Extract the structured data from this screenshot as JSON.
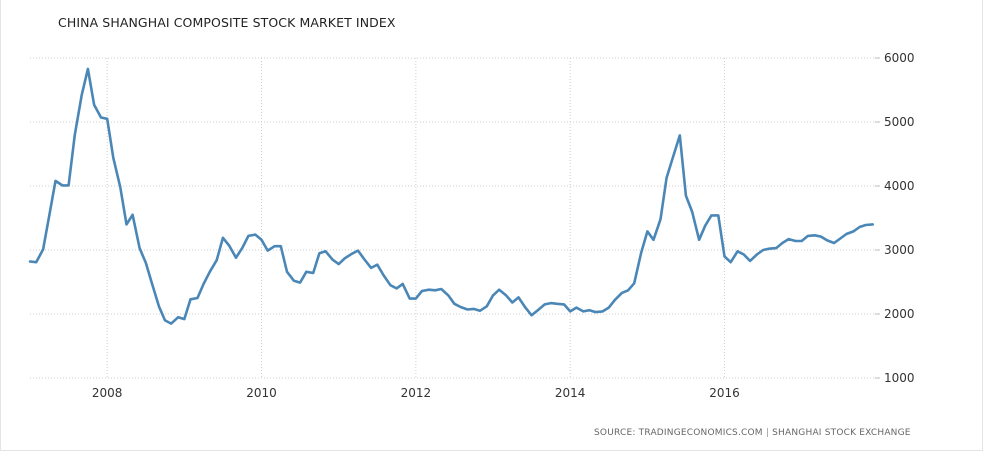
{
  "chart_data": {
    "type": "line",
    "title": "CHINA SHANGHAI COMPOSITE STOCK MARKET INDEX",
    "xlabel": "",
    "ylabel": "",
    "ylim": [
      1000,
      6000
    ],
    "xlim": [
      2007.0,
      2017.95
    ],
    "y_ticks": [
      "6000",
      "5000",
      "4000",
      "3000",
      "2000",
      "1000"
    ],
    "x_ticks": [
      "2008",
      "2010",
      "2012",
      "2014",
      "2016"
    ],
    "grid": true,
    "legend": "none",
    "line_color": "#4a87b7",
    "series": [
      {
        "x": [
          2007.0,
          2007.08,
          2007.17,
          2007.25,
          2007.33,
          2007.42,
          2007.5,
          2007.58,
          2007.67,
          2007.75,
          2007.83,
          2007.92,
          2008.0,
          2008.08,
          2008.17,
          2008.25,
          2008.33,
          2008.42,
          2008.5,
          2008.58,
          2008.67,
          2008.75,
          2008.83,
          2008.92,
          2009.0,
          2009.08,
          2009.17,
          2009.25,
          2009.33,
          2009.42,
          2009.5,
          2009.58,
          2009.67,
          2009.75,
          2009.83,
          2009.92,
          2010.0,
          2010.08,
          2010.17,
          2010.25,
          2010.33,
          2010.42,
          2010.5,
          2010.58,
          2010.67,
          2010.75,
          2010.83,
          2010.92,
          2011.0,
          2011.08,
          2011.17,
          2011.25,
          2011.33,
          2011.42,
          2011.5,
          2011.58,
          2011.67,
          2011.75,
          2011.83,
          2011.92,
          2012.0,
          2012.08,
          2012.17,
          2012.25,
          2012.33,
          2012.42,
          2012.5,
          2012.58,
          2012.67,
          2012.75,
          2012.83,
          2012.92,
          2013.0,
          2013.08,
          2013.17,
          2013.25,
          2013.33,
          2013.42,
          2013.5,
          2013.58,
          2013.67,
          2013.75,
          2013.83,
          2013.92,
          2014.0,
          2014.08,
          2014.17,
          2014.25,
          2014.33,
          2014.42,
          2014.5,
          2014.58,
          2014.67,
          2014.75,
          2014.83,
          2014.92,
          2015.0,
          2015.08,
          2015.17,
          2015.25,
          2015.33,
          2015.42,
          2015.5,
          2015.58,
          2015.67,
          2015.75,
          2015.83,
          2015.92,
          2016.0,
          2016.08,
          2016.17,
          2016.25,
          2016.33,
          2016.42,
          2016.5,
          2016.58,
          2016.67,
          2016.75,
          2016.83,
          2016.92,
          2017.0,
          2017.08,
          2017.17,
          2017.25,
          2017.33,
          2017.42,
          2017.5,
          2017.58,
          2017.67,
          2017.75,
          2017.83,
          2017.92
        ],
        "values": [
          2820,
          2810,
          3010,
          3540,
          4080,
          4010,
          4010,
          4800,
          5420,
          5830,
          5270,
          5070,
          5050,
          4440,
          3980,
          3400,
          3550,
          3030,
          2800,
          2480,
          2120,
          1900,
          1850,
          1950,
          1920,
          2230,
          2250,
          2470,
          2660,
          2840,
          3190,
          3070,
          2880,
          3030,
          3220,
          3240,
          3160,
          2990,
          3060,
          3060,
          2660,
          2520,
          2490,
          2660,
          2640,
          2950,
          2980,
          2850,
          2780,
          2870,
          2940,
          2990,
          2860,
          2720,
          2770,
          2610,
          2450,
          2400,
          2470,
          2240,
          2240,
          2360,
          2380,
          2370,
          2390,
          2290,
          2160,
          2110,
          2070,
          2080,
          2050,
          2120,
          2290,
          2380,
          2290,
          2180,
          2260,
          2100,
          1980,
          2060,
          2150,
          2170,
          2160,
          2150,
          2040,
          2100,
          2040,
          2060,
          2030,
          2040,
          2100,
          2220,
          2330,
          2370,
          2480,
          2960,
          3290,
          3160,
          3480,
          4130,
          4440,
          4790,
          3850,
          3600,
          3160,
          3380,
          3540,
          3540,
          2900,
          2810,
          2980,
          2930,
          2830,
          2930,
          3000,
          3020,
          3030,
          3110,
          3170,
          3140,
          3140,
          3220,
          3230,
          3210,
          3150,
          3110,
          3180,
          3250,
          3290,
          3360,
          3390,
          3400
        ]
      }
    ]
  },
  "source": {
    "text": "SOURCE: TRADINGECONOMICS.COM",
    "separator": "|",
    "provider": "SHANGHAI STOCK EXCHANGE"
  }
}
